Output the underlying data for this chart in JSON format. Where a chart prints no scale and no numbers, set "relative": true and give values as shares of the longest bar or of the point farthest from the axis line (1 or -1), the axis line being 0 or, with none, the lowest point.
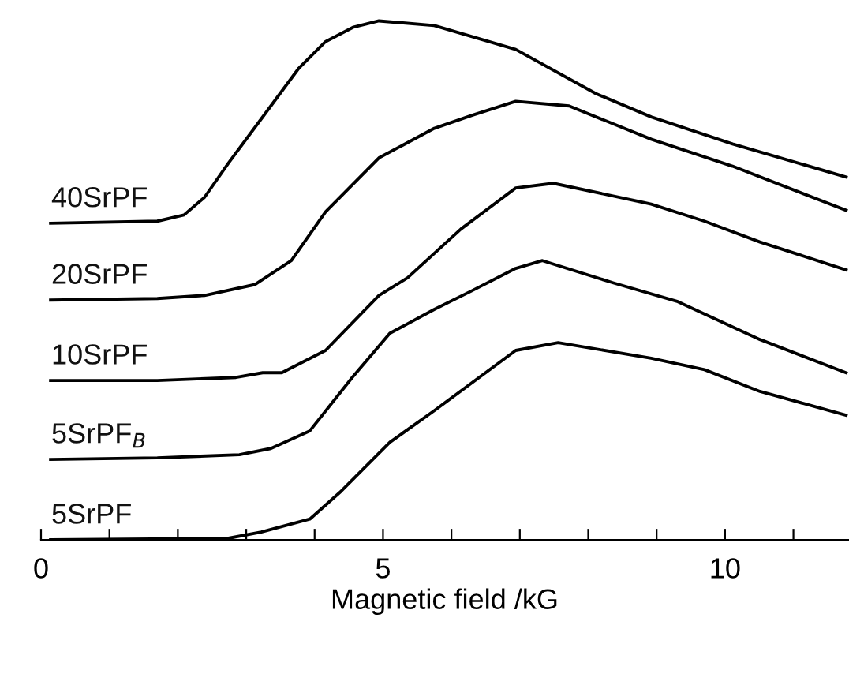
{
  "chart_data": {
    "type": "line",
    "relative": true,
    "xlabel": "Magnetic field /kG",
    "xlim": [
      0,
      11.8
    ],
    "xticks": [
      0,
      {
        "value": 1,
        "label": null
      },
      {
        "value": 2,
        "label": null
      },
      {
        "value": 3,
        "label": null
      },
      {
        "value": 4,
        "label": null
      },
      5,
      {
        "value": 6,
        "label": null
      },
      {
        "value": 7,
        "label": null
      },
      {
        "value": 8,
        "label": null
      },
      {
        "value": 9,
        "label": null
      },
      10,
      {
        "value": 11,
        "label": null
      }
    ],
    "grid": false,
    "legend": false,
    "marker": "none",
    "line_style": "solid",
    "series": [
      {
        "name": "40SrPF",
        "color": "#000000",
        "x": [
          0.14,
          1.7,
          2.09,
          2.39,
          2.74,
          3.36,
          3.77,
          4.16,
          4.57,
          4.94,
          5.75,
          6.94,
          8.11,
          8.92,
          10.11,
          11.77
        ],
        "values": [
          0.61,
          0.614,
          0.626,
          0.66,
          0.726,
          0.836,
          0.909,
          0.96,
          0.988,
          1.0,
          0.991,
          0.945,
          0.86,
          0.815,
          0.763,
          0.699
        ]
      },
      {
        "name": "20SrPF",
        "color": "#000000",
        "x": [
          0.14,
          1.7,
          2.39,
          3.13,
          3.66,
          4.16,
          4.94,
          5.75,
          6.3,
          6.94,
          7.72,
          8.92,
          10.11,
          11.77
        ],
        "values": [
          0.462,
          0.465,
          0.471,
          0.492,
          0.538,
          0.632,
          0.736,
          0.793,
          0.818,
          0.845,
          0.836,
          0.772,
          0.72,
          0.635
        ]
      },
      {
        "name": "10SrPF",
        "color": "#000000",
        "x": [
          0.14,
          1.7,
          2.85,
          3.24,
          3.52,
          4.16,
          4.94,
          5.36,
          6.14,
          6.94,
          7.49,
          8.92,
          9.7,
          10.51,
          11.77
        ],
        "values": [
          0.307,
          0.307,
          0.313,
          0.322,
          0.322,
          0.365,
          0.471,
          0.505,
          0.599,
          0.678,
          0.687,
          0.647,
          0.614,
          0.574,
          0.52
        ]
      },
      {
        "name": "5SrPF$_{B}$",
        "color": "#000000",
        "x": [
          0.14,
          1.7,
          2.9,
          3.36,
          3.93,
          4.55,
          5.1,
          5.75,
          6.3,
          6.94,
          7.33,
          8.37,
          9.31,
          10.51,
          11.77
        ],
        "values": [
          0.155,
          0.158,
          0.164,
          0.176,
          0.21,
          0.313,
          0.398,
          0.444,
          0.48,
          0.523,
          0.538,
          0.495,
          0.459,
          0.386,
          0.322
        ]
      },
      {
        "name": "5SrPF",
        "color": "#000000",
        "x": [
          0.14,
          2.74,
          3.22,
          3.93,
          4.39,
          5.1,
          5.75,
          6.94,
          7.56,
          8.92,
          9.7,
          10.51,
          11.77
        ],
        "values": [
          0,
          0.003,
          0.015,
          0.04,
          0.094,
          0.188,
          0.249,
          0.365,
          0.38,
          0.35,
          0.328,
          0.286,
          0.24
        ]
      }
    ]
  }
}
